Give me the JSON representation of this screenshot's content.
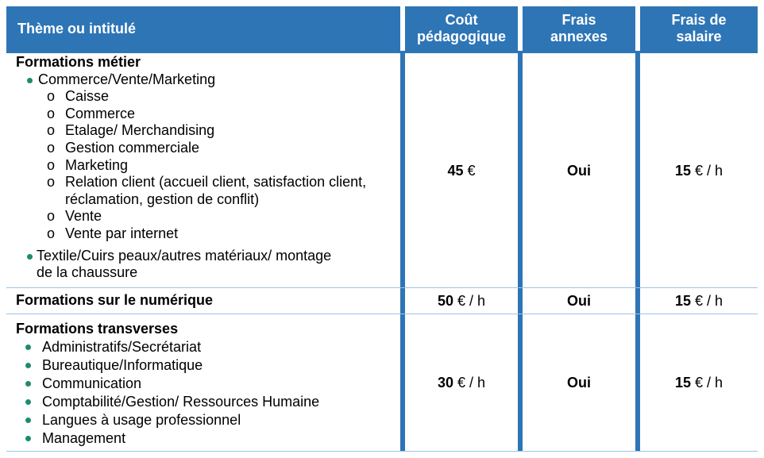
{
  "header": {
    "col1": "Thème ou intitulé",
    "col2_line1": "Coût",
    "col2_line2": "pédagogique",
    "col3_line1": "Frais",
    "col3_line2": "annexes",
    "col4_line1": "Frais de",
    "col4_line2": "salaire"
  },
  "rows": [
    {
      "title": "Formations métier",
      "bullet1": "Commerce/Vente/Marketing",
      "subs": [
        "Caisse",
        "Commerce",
        "Etalage/ Merchandising",
        "Gestion commerciale",
        "Marketing",
        "Relation client (accueil client, satisfaction client,",
        "réclamation, gestion de conflit)",
        "Vente",
        "Vente par internet"
      ],
      "bullet2_line1": "Textile/Cuirs peaux/autres matériaux/ montage",
      "bullet2_line2": "de la chaussure",
      "cost_num": "45",
      "cost_unit": " €",
      "annexes": "Oui",
      "salary_num": "15",
      "salary_unit": " € / h"
    },
    {
      "title": "Formations sur le numérique",
      "cost_num": "50",
      "cost_unit": " € / h",
      "annexes": "Oui",
      "salary_num": "15",
      "salary_unit": " € / h"
    },
    {
      "title": "Formations transverses",
      "items": [
        "Administratifs/Secrétariat",
        "Bureautique/Informatique",
        "Communication",
        "Comptabilité/Gestion/ Ressources Humaine",
        "Langues à usage professionnel",
        "Management"
      ],
      "cost_num": "30",
      "cost_unit": " € / h",
      "annexes": "Oui",
      "salary_num": "15",
      "salary_unit": " € / h"
    }
  ],
  "colors": {
    "header_bg": "#2e75b6",
    "bullet": "#1f8a70"
  }
}
